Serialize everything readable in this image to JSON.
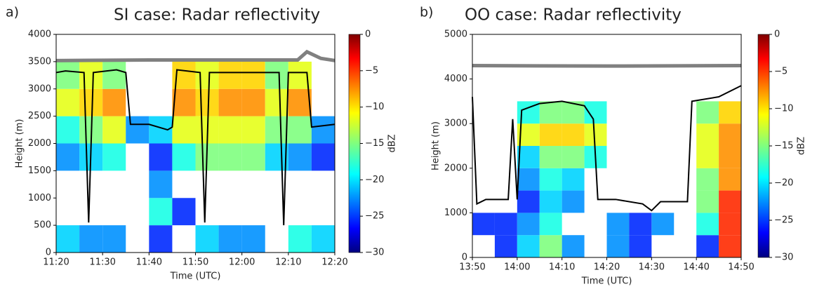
{
  "chart_data": [
    {
      "type": "heatmap",
      "panel_label": "a)",
      "title": "SI case: Radar reflectivity",
      "xlabel": "Time (UTC)",
      "ylabel": "Height (m)",
      "xlim": [
        "11:20",
        "12:20"
      ],
      "ylim": [
        0,
        4000
      ],
      "xticks": [
        "11:20",
        "11:30",
        "11:40",
        "11:50",
        "12:00",
        "12:10",
        "12:20"
      ],
      "yticks": [
        0,
        500,
        1000,
        1500,
        2000,
        2500,
        3000,
        3500,
        4000
      ],
      "x": [
        "11:20",
        "11:25",
        "11:30",
        "11:35",
        "11:40",
        "11:45",
        "11:50",
        "11:55",
        "12:00",
        "12:05",
        "12:10",
        "12:15",
        "12:20"
      ],
      "y": [
        0,
        500,
        1000,
        1500,
        2000,
        2500,
        3000,
        3500,
        4000
      ],
      "z": [
        [
          -20,
          -22,
          -22,
          null,
          -25,
          null,
          -20,
          -22,
          -22,
          null,
          -18,
          -20
        ],
        [
          null,
          null,
          null,
          null,
          -18,
          -25,
          null,
          null,
          null,
          null,
          null,
          null
        ],
        [
          null,
          null,
          null,
          null,
          -22,
          null,
          null,
          null,
          null,
          null,
          null,
          null
        ],
        [
          -22,
          -20,
          -18,
          null,
          -25,
          -18,
          -15,
          -15,
          -15,
          -20,
          -22,
          -25
        ],
        [
          -18,
          -15,
          -12,
          -22,
          -20,
          -12,
          -12,
          -12,
          -12,
          -15,
          -15,
          -22
        ],
        [
          -12,
          -10,
          -8,
          null,
          null,
          -8,
          -10,
          -8,
          -8,
          -12,
          -8,
          null
        ],
        [
          -15,
          -12,
          -15,
          null,
          null,
          -10,
          -12,
          -10,
          -10,
          -15,
          -12,
          null
        ],
        [
          null,
          null,
          null,
          null,
          null,
          null,
          null,
          null,
          null,
          null,
          null,
          null
        ]
      ],
      "series": [
        {
          "color": "#000000",
          "x": [
            "11:20",
            "11:22",
            "11:26",
            "11:27",
            "11:28",
            "11:33",
            "11:35",
            "11:36",
            "11:40",
            "11:44",
            "11:45",
            "11:46",
            "11:51",
            "11:52",
            "11:53",
            "12:08",
            "12:09",
            "12:10",
            "12:14",
            "12:15",
            "12:20"
          ],
          "values": [
            3300,
            3330,
            3300,
            550,
            3300,
            3350,
            3300,
            2350,
            2350,
            2250,
            2300,
            3350,
            3300,
            550,
            3300,
            3300,
            500,
            3300,
            3300,
            2300,
            2350
          ]
        },
        {
          "color": "#808080",
          "x": [
            "11:20",
            "11:40",
            "12:00",
            "12:12",
            "12:14",
            "12:17",
            "12:20"
          ],
          "values": [
            3520,
            3530,
            3530,
            3530,
            3680,
            3560,
            3520
          ]
        }
      ],
      "colorbar": {
        "label": "dBZ",
        "colormap": "jet",
        "lim": [
          -30,
          0
        ],
        "ticks": [
          0,
          {
            "value": -5,
            "label": "−5"
          },
          {
            "value": -10,
            "label": "−10"
          },
          {
            "value": -15,
            "label": "−15"
          },
          {
            "value": -20,
            "label": "−20"
          },
          {
            "value": -25,
            "label": "−25"
          },
          {
            "value": -30,
            "label": "−30"
          }
        ]
      }
    },
    {
      "type": "heatmap",
      "panel_label": "b)",
      "title": "OO case: Radar reflectivity",
      "xlabel": "Time (UTC)",
      "ylabel": "Height (m)",
      "xlim": [
        "13:50",
        "14:50"
      ],
      "ylim": [
        0,
        5000
      ],
      "xticks": [
        "13:50",
        "14:00",
        "14:10",
        "14:20",
        "14:30",
        "14:40",
        "14:50"
      ],
      "yticks": [
        0,
        1000,
        2000,
        3000,
        4000,
        5000
      ],
      "x": [
        "13:50",
        "13:55",
        "14:00",
        "14:05",
        "14:10",
        "14:15",
        "14:20",
        "14:25",
        "14:30",
        "14:35",
        "14:40",
        "14:45",
        "14:50"
      ],
      "y": [
        0,
        500,
        1000,
        1500,
        2000,
        2500,
        3000,
        3500,
        4000,
        4500,
        5000
      ],
      "z": [
        [
          null,
          -25,
          -20,
          -15,
          -22,
          null,
          -22,
          -25,
          null,
          null,
          -25,
          -5
        ],
        [
          -25,
          -25,
          -22,
          -18,
          null,
          null,
          -22,
          -25,
          -22,
          null,
          -18,
          -5
        ],
        [
          null,
          null,
          -25,
          -20,
          -22,
          null,
          null,
          null,
          null,
          null,
          -15,
          -5
        ],
        [
          null,
          null,
          -22,
          -18,
          -20,
          null,
          null,
          null,
          null,
          null,
          -15,
          -8
        ],
        [
          null,
          null,
          -20,
          -15,
          -15,
          -18,
          null,
          null,
          null,
          null,
          -12,
          -8
        ],
        [
          null,
          null,
          -12,
          -10,
          -10,
          -12,
          null,
          null,
          null,
          null,
          -12,
          -8
        ],
        [
          null,
          null,
          -18,
          -15,
          -15,
          -18,
          null,
          null,
          null,
          null,
          -15,
          -10
        ],
        [
          null,
          null,
          null,
          null,
          null,
          null,
          null,
          null,
          null,
          null,
          null,
          null
        ],
        [
          null,
          null,
          null,
          null,
          null,
          null,
          null,
          null,
          null,
          null,
          null,
          null
        ],
        [
          null,
          null,
          null,
          null,
          null,
          null,
          null,
          null,
          null,
          null,
          null,
          null
        ]
      ],
      "series": [
        {
          "color": "#000000",
          "x": [
            "13:50",
            "13:51",
            "13:53",
            "13:58",
            "13:59",
            "14:00",
            "14:01",
            "14:05",
            "14:10",
            "14:15",
            "14:17",
            "14:18",
            "14:20",
            "14:22",
            "14:28",
            "14:30",
            "14:32",
            "14:38",
            "14:39",
            "14:45",
            "14:50"
          ],
          "values": [
            3600,
            1200,
            1300,
            1300,
            3100,
            1300,
            3300,
            3450,
            3500,
            3400,
            3100,
            1300,
            1300,
            1300,
            1200,
            1050,
            1250,
            1250,
            3500,
            3600,
            3850
          ]
        },
        {
          "color": "#808080",
          "x": [
            "13:50",
            "14:20",
            "14:50"
          ],
          "values": [
            4300,
            4290,
            4300
          ]
        }
      ],
      "colorbar": {
        "label": "dBZ",
        "colormap": "jet",
        "lim": [
          -30,
          0
        ],
        "ticks": [
          0,
          {
            "value": -5,
            "label": "−5"
          },
          {
            "value": -10,
            "label": "−10"
          },
          {
            "value": -15,
            "label": "−15"
          },
          {
            "value": -20,
            "label": "−20"
          },
          {
            "value": -25,
            "label": "−25"
          },
          {
            "value": -30,
            "label": "−30"
          }
        ]
      }
    }
  ]
}
